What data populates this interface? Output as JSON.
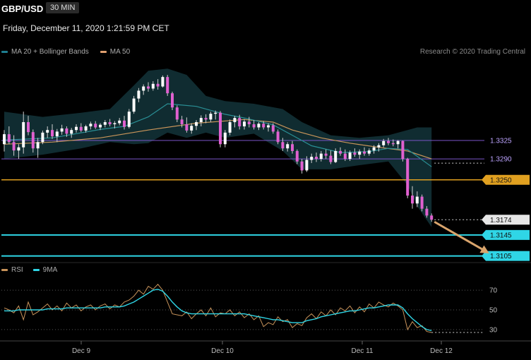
{
  "header": {
    "symbol": "GBP/USD",
    "timeframe": "30 MIN",
    "datetime": "Friday, December 11, 2020 1:21:59 PM CET"
  },
  "legend": {
    "items": [
      {
        "label": "MA 20 + Bollinger Bands",
        "color": "#1e7d8f"
      },
      {
        "label": "MA 50",
        "color": "#e0a070"
      }
    ],
    "credit": "Research © 2020 Trading Central"
  },
  "rsi_legend": {
    "items": [
      {
        "label": "RSI",
        "color": "#c8935a"
      },
      {
        "label": "9MA",
        "color": "#2fd6e6"
      }
    ]
  },
  "colors": {
    "bull": "#ffffff",
    "bear": "#e060d0",
    "band": "#13343a",
    "ma20": "#2a8f95",
    "ma50": "#c9955a",
    "resistance": "#7a55c8",
    "pivot": "#e0a020",
    "support": "#2fd6e6",
    "arrow": "#d9a46c",
    "rsi": "#c8935a",
    "rsi_ma": "#2fd6e6"
  },
  "chart_data": [
    {
      "type": "candlestick",
      "title": "GBP/USD",
      "x_ticks": [
        "Dec 9",
        "Dec 10",
        "Dec 11",
        "Dec 12"
      ],
      "ylim": [
        1.3095,
        1.3465
      ],
      "candles": [
        [
          1.3318,
          1.3345,
          1.3304,
          1.3337
        ],
        [
          1.3337,
          1.3352,
          1.3318,
          1.3322
        ],
        [
          1.3322,
          1.3335,
          1.3296,
          1.3306
        ],
        [
          1.3306,
          1.3318,
          1.329,
          1.3312
        ],
        [
          1.3312,
          1.338,
          1.33,
          1.336
        ],
        [
          1.336,
          1.3372,
          1.3335,
          1.3341
        ],
        [
          1.3341,
          1.3346,
          1.3302,
          1.331
        ],
        [
          1.331,
          1.333,
          1.3292,
          1.3322
        ],
        [
          1.3322,
          1.3344,
          1.3318,
          1.334
        ],
        [
          1.334,
          1.3352,
          1.333,
          1.3345
        ],
        [
          1.3345,
          1.3356,
          1.3328,
          1.3333
        ],
        [
          1.3333,
          1.3347,
          1.3322,
          1.3342
        ],
        [
          1.3342,
          1.3355,
          1.3336,
          1.3348
        ],
        [
          1.3348,
          1.3352,
          1.3332,
          1.3338
        ],
        [
          1.3338,
          1.3349,
          1.333,
          1.3345
        ],
        [
          1.3345,
          1.3356,
          1.334,
          1.3351
        ],
        [
          1.3351,
          1.3358,
          1.3341,
          1.3344
        ],
        [
          1.3344,
          1.3355,
          1.334,
          1.3352
        ],
        [
          1.3352,
          1.3361,
          1.3346,
          1.3357
        ],
        [
          1.3357,
          1.3362,
          1.3347,
          1.335
        ],
        [
          1.335,
          1.3358,
          1.3345,
          1.3355
        ],
        [
          1.3355,
          1.3364,
          1.335,
          1.336
        ],
        [
          1.336,
          1.3366,
          1.3352,
          1.3356
        ],
        [
          1.3356,
          1.3362,
          1.3348,
          1.3358
        ],
        [
          1.3358,
          1.3368,
          1.3354,
          1.3363
        ],
        [
          1.3363,
          1.3372,
          1.3346,
          1.3351
        ],
        [
          1.3351,
          1.3385,
          1.3348,
          1.338
        ],
        [
          1.338,
          1.341,
          1.3376,
          1.3405
        ],
        [
          1.3405,
          1.3425,
          1.3398,
          1.342
        ],
        [
          1.342,
          1.3432,
          1.3412,
          1.3428
        ],
        [
          1.3428,
          1.3436,
          1.3418,
          1.3424
        ],
        [
          1.3424,
          1.3438,
          1.342,
          1.3433
        ],
        [
          1.3433,
          1.3442,
          1.3422,
          1.3428
        ],
        [
          1.3428,
          1.3449,
          1.3426,
          1.3446
        ],
        [
          1.3446,
          1.345,
          1.341,
          1.3415
        ],
        [
          1.3415,
          1.3418,
          1.3383,
          1.3388
        ],
        [
          1.3388,
          1.3392,
          1.336,
          1.3365
        ],
        [
          1.3365,
          1.3372,
          1.335,
          1.3356
        ],
        [
          1.3356,
          1.3369,
          1.334,
          1.3344
        ],
        [
          1.3344,
          1.3358,
          1.3338,
          1.3353
        ],
        [
          1.3353,
          1.3364,
          1.3345,
          1.336
        ],
        [
          1.336,
          1.3373,
          1.3352,
          1.3368
        ],
        [
          1.3368,
          1.3375,
          1.3358,
          1.3365
        ],
        [
          1.3365,
          1.338,
          1.336,
          1.3376
        ],
        [
          1.3376,
          1.3382,
          1.3365,
          1.3378
        ],
        [
          1.3378,
          1.3381,
          1.3312,
          1.3318
        ],
        [
          1.3318,
          1.3345,
          1.3312,
          1.334
        ],
        [
          1.334,
          1.3365,
          1.3335,
          1.336
        ],
        [
          1.336,
          1.3372,
          1.335,
          1.3368
        ],
        [
          1.3368,
          1.3374,
          1.3346,
          1.3352
        ],
        [
          1.3352,
          1.3366,
          1.3346,
          1.3361
        ],
        [
          1.3361,
          1.337,
          1.335,
          1.3356
        ],
        [
          1.3356,
          1.3364,
          1.3346,
          1.335
        ],
        [
          1.335,
          1.336,
          1.3345,
          1.3357
        ],
        [
          1.3357,
          1.3362,
          1.3346,
          1.335
        ],
        [
          1.335,
          1.3358,
          1.3342,
          1.3354
        ],
        [
          1.3354,
          1.3358,
          1.3338,
          1.3342
        ],
        [
          1.3342,
          1.3346,
          1.3318,
          1.3322
        ],
        [
          1.3322,
          1.333,
          1.3305,
          1.331
        ],
        [
          1.331,
          1.3322,
          1.3304,
          1.3318
        ],
        [
          1.3318,
          1.3324,
          1.33,
          1.3305
        ],
        [
          1.3305,
          1.3308,
          1.328,
          1.3285
        ],
        [
          1.3285,
          1.329,
          1.3262,
          1.3268
        ],
        [
          1.3268,
          1.3295,
          1.3265,
          1.3288
        ],
        [
          1.3288,
          1.33,
          1.3282,
          1.3294
        ],
        [
          1.3294,
          1.3302,
          1.3284,
          1.329
        ],
        [
          1.329,
          1.3305,
          1.3285,
          1.33
        ],
        [
          1.33,
          1.3308,
          1.329,
          1.3296
        ],
        [
          1.3296,
          1.3306,
          1.328,
          1.3284
        ],
        [
          1.3284,
          1.331,
          1.3282,
          1.3305
        ],
        [
          1.3305,
          1.3312,
          1.3296,
          1.33
        ],
        [
          1.33,
          1.3308,
          1.3286,
          1.329
        ],
        [
          1.329,
          1.3306,
          1.3286,
          1.3302
        ],
        [
          1.3302,
          1.331,
          1.3294,
          1.3298
        ],
        [
          1.3298,
          1.3308,
          1.329,
          1.3304
        ],
        [
          1.3304,
          1.3312,
          1.3296,
          1.33
        ],
        [
          1.33,
          1.331,
          1.3296,
          1.3306
        ],
        [
          1.3306,
          1.3316,
          1.33,
          1.3312
        ],
        [
          1.3312,
          1.332,
          1.3304,
          1.3316
        ],
        [
          1.3316,
          1.3328,
          1.3312,
          1.3324
        ],
        [
          1.3324,
          1.333,
          1.3316,
          1.332
        ],
        [
          1.332,
          1.3327,
          1.3314,
          1.3318
        ],
        [
          1.3318,
          1.3326,
          1.331,
          1.3324
        ],
        [
          1.3324,
          1.3325,
          1.3285,
          1.329
        ],
        [
          1.329,
          1.3292,
          1.3215,
          1.322
        ],
        [
          1.322,
          1.3238,
          1.3195,
          1.3205
        ],
        [
          1.3205,
          1.3228,
          1.3198,
          1.3218
        ],
        [
          1.3218,
          1.3222,
          1.319,
          1.3195
        ],
        [
          1.3195,
          1.32,
          1.3178,
          1.3182
        ],
        [
          1.3182,
          1.3186,
          1.317,
          1.3174
        ]
      ],
      "ma20": [
        [
          0,
          1.3326
        ],
        [
          10,
          1.333
        ],
        [
          20,
          1.3346
        ],
        [
          25,
          1.3352
        ],
        [
          30,
          1.337
        ],
        [
          34,
          1.3395
        ],
        [
          40,
          1.339
        ],
        [
          46,
          1.3375
        ],
        [
          50,
          1.3368
        ],
        [
          56,
          1.3355
        ],
        [
          60,
          1.3335
        ],
        [
          64,
          1.3315
        ],
        [
          70,
          1.3302
        ],
        [
          76,
          1.3304
        ],
        [
          80,
          1.331
        ],
        [
          84,
          1.3308
        ],
        [
          86,
          1.3295
        ],
        [
          89,
          1.3275
        ]
      ],
      "ma50": [
        [
          0,
          1.3318
        ],
        [
          10,
          1.3322
        ],
        [
          20,
          1.333
        ],
        [
          30,
          1.3345
        ],
        [
          40,
          1.3358
        ],
        [
          50,
          1.3365
        ],
        [
          56,
          1.336
        ],
        [
          60,
          1.3345
        ],
        [
          66,
          1.333
        ],
        [
          72,
          1.332
        ],
        [
          78,
          1.3312
        ],
        [
          84,
          1.3305
        ],
        [
          89,
          1.329
        ]
      ],
      "bollinger_upper": [
        [
          0,
          1.338
        ],
        [
          8,
          1.337
        ],
        [
          16,
          1.3378
        ],
        [
          22,
          1.3385
        ],
        [
          27,
          1.343
        ],
        [
          30,
          1.3458
        ],
        [
          34,
          1.3462
        ],
        [
          38,
          1.345
        ],
        [
          42,
          1.341
        ],
        [
          46,
          1.34
        ],
        [
          52,
          1.3395
        ],
        [
          58,
          1.3385
        ],
        [
          62,
          1.336
        ],
        [
          68,
          1.3335
        ],
        [
          74,
          1.333
        ],
        [
          80,
          1.3335
        ],
        [
          84,
          1.3345
        ],
        [
          86,
          1.335
        ],
        [
          89,
          1.335
        ]
      ],
      "bollinger_lower": [
        [
          0,
          1.329
        ],
        [
          8,
          1.3298
        ],
        [
          16,
          1.331
        ],
        [
          22,
          1.3322
        ],
        [
          27,
          1.3318
        ],
        [
          30,
          1.332
        ],
        [
          34,
          1.334
        ],
        [
          38,
          1.333
        ],
        [
          42,
          1.334
        ],
        [
          46,
          1.333
        ],
        [
          52,
          1.3338
        ],
        [
          58,
          1.3305
        ],
        [
          62,
          1.327
        ],
        [
          68,
          1.327
        ],
        [
          74,
          1.3278
        ],
        [
          80,
          1.3285
        ],
        [
          84,
          1.324
        ],
        [
          86,
          1.32
        ],
        [
          89,
          1.316
        ]
      ],
      "levels": [
        {
          "label": "1.3325",
          "value": 1.3325,
          "kind": "resistance"
        },
        {
          "label": "1.3290",
          "value": 1.329,
          "kind": "resistance"
        },
        {
          "label": "1.3250",
          "value": 1.325,
          "kind": "pivot"
        },
        {
          "label": "1.3174",
          "value": 1.3174,
          "kind": "last"
        },
        {
          "label": "1.3145",
          "value": 1.3145,
          "kind": "support"
        },
        {
          "label": "1.3105",
          "value": 1.3105,
          "kind": "support"
        }
      ],
      "forecast_arrow": {
        "from": [
          89,
          1.317
        ],
        "to": [
          101,
          1.311
        ]
      }
    },
    {
      "type": "line",
      "title": "RSI",
      "ylim": [
        22,
        78
      ],
      "y_ticks": [
        70,
        50,
        30
      ],
      "series": [
        {
          "name": "RSI",
          "values": [
            52,
            50,
            47,
            54,
            40,
            58,
            45,
            48,
            52,
            56,
            50,
            54,
            49,
            57,
            52,
            55,
            49,
            53,
            55,
            50,
            54,
            56,
            51,
            55,
            53,
            58,
            60,
            64,
            70,
            66,
            74,
            71,
            76,
            70,
            58,
            46,
            45,
            44,
            48,
            41,
            46,
            50,
            44,
            52,
            43,
            47,
            46,
            50,
            44,
            48,
            42,
            46,
            40,
            44,
            33,
            37,
            35,
            43,
            38,
            40,
            32,
            36,
            34,
            42,
            46,
            41,
            48,
            44,
            50,
            45,
            52,
            49,
            54,
            47,
            53,
            48,
            56,
            52,
            58,
            55,
            53,
            57,
            54,
            50,
            30,
            38,
            32,
            34,
            28,
            27
          ]
        },
        {
          "name": "9MA",
          "values": [
            49,
            49,
            49,
            50,
            50,
            50,
            50,
            50,
            50,
            51,
            51,
            51,
            51,
            52,
            52,
            52,
            52,
            52,
            52,
            52,
            52,
            53,
            53,
            53,
            53,
            54,
            56,
            58,
            61,
            64,
            67,
            70,
            71,
            69,
            64,
            58,
            53,
            49,
            47,
            46,
            46,
            46,
            46,
            46,
            46,
            46,
            46,
            46,
            46,
            46,
            46,
            45,
            44,
            43,
            42,
            41,
            40,
            40,
            39,
            38,
            37,
            37,
            37,
            39,
            40,
            41,
            43,
            44,
            45,
            46,
            47,
            48,
            49,
            49,
            50,
            51,
            52,
            52,
            53,
            54,
            55,
            55,
            55,
            52,
            46,
            41,
            37,
            33,
            30,
            29
          ]
        }
      ]
    }
  ]
}
